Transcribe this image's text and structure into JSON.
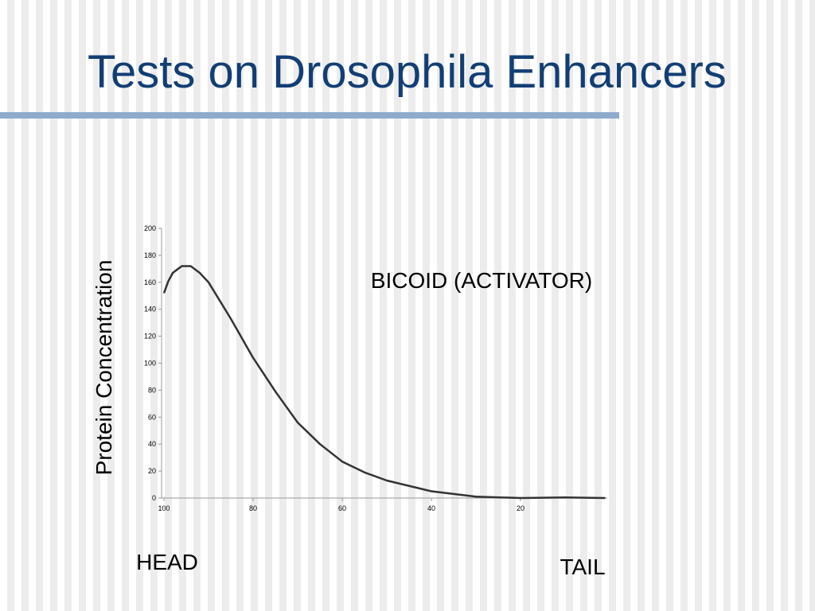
{
  "chart_data": {
    "type": "line",
    "title": "Tests on Drosophila Enhancers",
    "y_label": "Protein Concentration",
    "annotations": [
      "BICOID (ACTIVATOR)",
      "HEAD",
      "TAIL"
    ],
    "x": [
      100,
      99,
      98,
      96,
      94,
      92,
      90,
      85,
      80,
      75,
      70,
      65,
      60,
      55,
      50,
      40,
      30,
      20,
      10,
      1
    ],
    "values": [
      152,
      161,
      167,
      172,
      172,
      167,
      160,
      133,
      104,
      79,
      56,
      40,
      27,
      19,
      13,
      5,
      1,
      0,
      0.5,
      0
    ],
    "color": "#333333",
    "xlim": [
      100,
      0
    ],
    "ylim": [
      0,
      200
    ],
    "xticks": [
      100,
      80,
      60,
      40,
      20
    ],
    "yticks": [
      0,
      20,
      40,
      60,
      80,
      100,
      120,
      140,
      160,
      180,
      200
    ]
  }
}
